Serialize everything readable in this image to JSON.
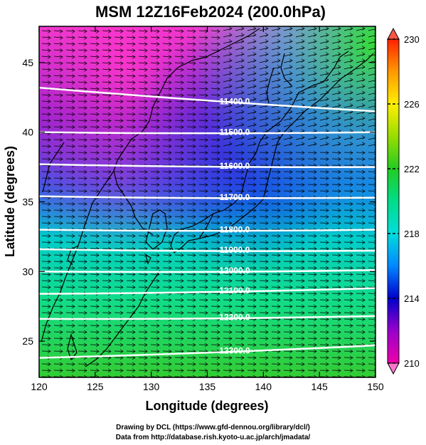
{
  "chart_data": {
    "type": "heatmap",
    "title": "MSM 12Z16Feb2024 (200.0hPa)",
    "xlabel": "Longitude (degrees)",
    "ylabel": "Latitude  (degrees)",
    "xlim": [
      120,
      150
    ],
    "ylim": [
      22.4,
      47.6
    ],
    "x_ticks": [
      "120",
      "125",
      "130",
      "135",
      "140",
      "145",
      "150"
    ],
    "y_ticks": [
      "25",
      "30",
      "35",
      "40",
      "45"
    ],
    "colorbar": {
      "range": [
        210,
        230
      ],
      "ticks": [
        "210",
        "214",
        "218",
        "222",
        "226",
        "230"
      ],
      "extend": "both"
    },
    "contours": [
      {
        "label": "11500.0",
        "lat_left": 40.0,
        "lat_right": 40.0
      },
      {
        "label": "11600.0",
        "lat_left": 37.7,
        "lat_right": 37.5
      },
      {
        "label": "11700.0",
        "lat_left": 35.4,
        "lat_right": 35.3
      },
      {
        "label": "11800.0",
        "lat_left": 33.0,
        "lat_right": 33.0
      },
      {
        "label": "11900.0",
        "lat_left": 31.6,
        "lat_right": 31.5
      },
      {
        "label": "12000.0",
        "lat_left": 30.0,
        "lat_right": 30.1
      },
      {
        "label": "12100.0",
        "lat_left": 28.4,
        "lat_right": 28.8
      },
      {
        "label": "12200.0",
        "lat_left": 26.6,
        "lat_right": 26.8
      },
      {
        "label": "12300.0",
        "lat_left": 23.8,
        "lat_right": 24.7
      },
      {
        "label": "11400.0",
        "lat_left": 43.2,
        "lat_right": 41.5
      }
    ],
    "shading_color_stops": [
      "#ff66cc",
      "#9900cc",
      "#1122dd",
      "#00cccc",
      "#22dd44",
      "#ffff00",
      "#ff3300"
    ],
    "credits": [
      "Drawing by DCL (https://www.gfd-dennou.org/library/dcl/)",
      "Data from http://database.rish.kyoto-u.ac.jp/arch/jmadata/"
    ]
  }
}
